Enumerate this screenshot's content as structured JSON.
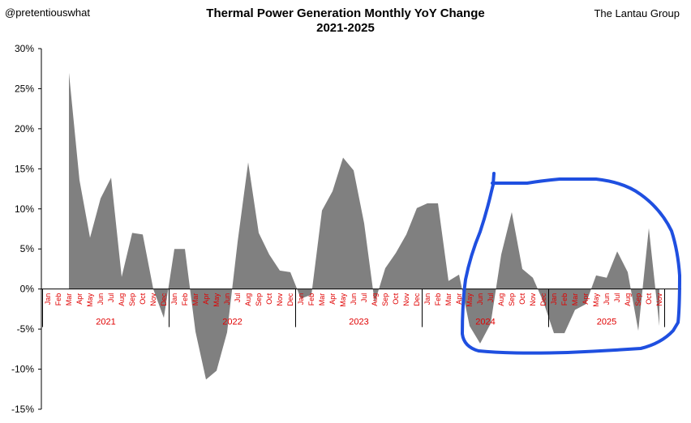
{
  "header": {
    "handle": "@pretentiouswhat",
    "title_line1": "Thermal Power Generation Monthly YoY Change",
    "title_line2": "2021-2025",
    "source": "The Lantau Group"
  },
  "colors": {
    "area": "#808080",
    "tick_text": "#e00000",
    "annotation": "#1f4fe0"
  },
  "chart_data": {
    "type": "area",
    "title": "Thermal Power Generation Monthly YoY Change 2021-2025",
    "ylim": [
      -15,
      30
    ],
    "yticks": [
      30,
      25,
      20,
      15,
      10,
      5,
      0,
      -5,
      -10,
      -15
    ],
    "ytick_labels": [
      "30%",
      "25%",
      "20%",
      "15%",
      "10%",
      "5%",
      "0%",
      "-5%",
      "-10%",
      "-15%"
    ],
    "month_labels": [
      "Jan",
      "Feb",
      "Mar",
      "Apr",
      "May",
      "Jun",
      "Jul",
      "Aug",
      "Sep",
      "Oct",
      "Nov",
      "Dec"
    ],
    "years": [
      "2021",
      "2022",
      "2023",
      "2024",
      "2025"
    ],
    "months_in_last_year": 11,
    "grid": false,
    "legend": "none",
    "series": [
      {
        "values": [
          null,
          null,
          27.0,
          13.6,
          6.4,
          11.3,
          13.9,
          1.5,
          7.0,
          6.8,
          0.0,
          -3.6,
          5.0,
          5.0,
          -5.3,
          -11.3,
          -10.2,
          -5.4,
          5.9,
          15.8,
          7.0,
          4.3,
          2.3,
          2.1,
          -1.2,
          -0.7,
          9.8,
          12.2,
          16.4,
          14.8,
          8.2,
          -1.7,
          2.6,
          4.5,
          6.8,
          10.1,
          10.7,
          10.7,
          1.0,
          1.8,
          -4.6,
          -6.8,
          -4.3,
          4.3,
          9.6,
          2.5,
          1.4,
          -1.6,
          -5.5,
          -5.5,
          -2.6,
          -1.9,
          1.7,
          1.4,
          4.7,
          2.1,
          -5.2,
          7.6,
          -4.6
        ]
      }
    ]
  }
}
